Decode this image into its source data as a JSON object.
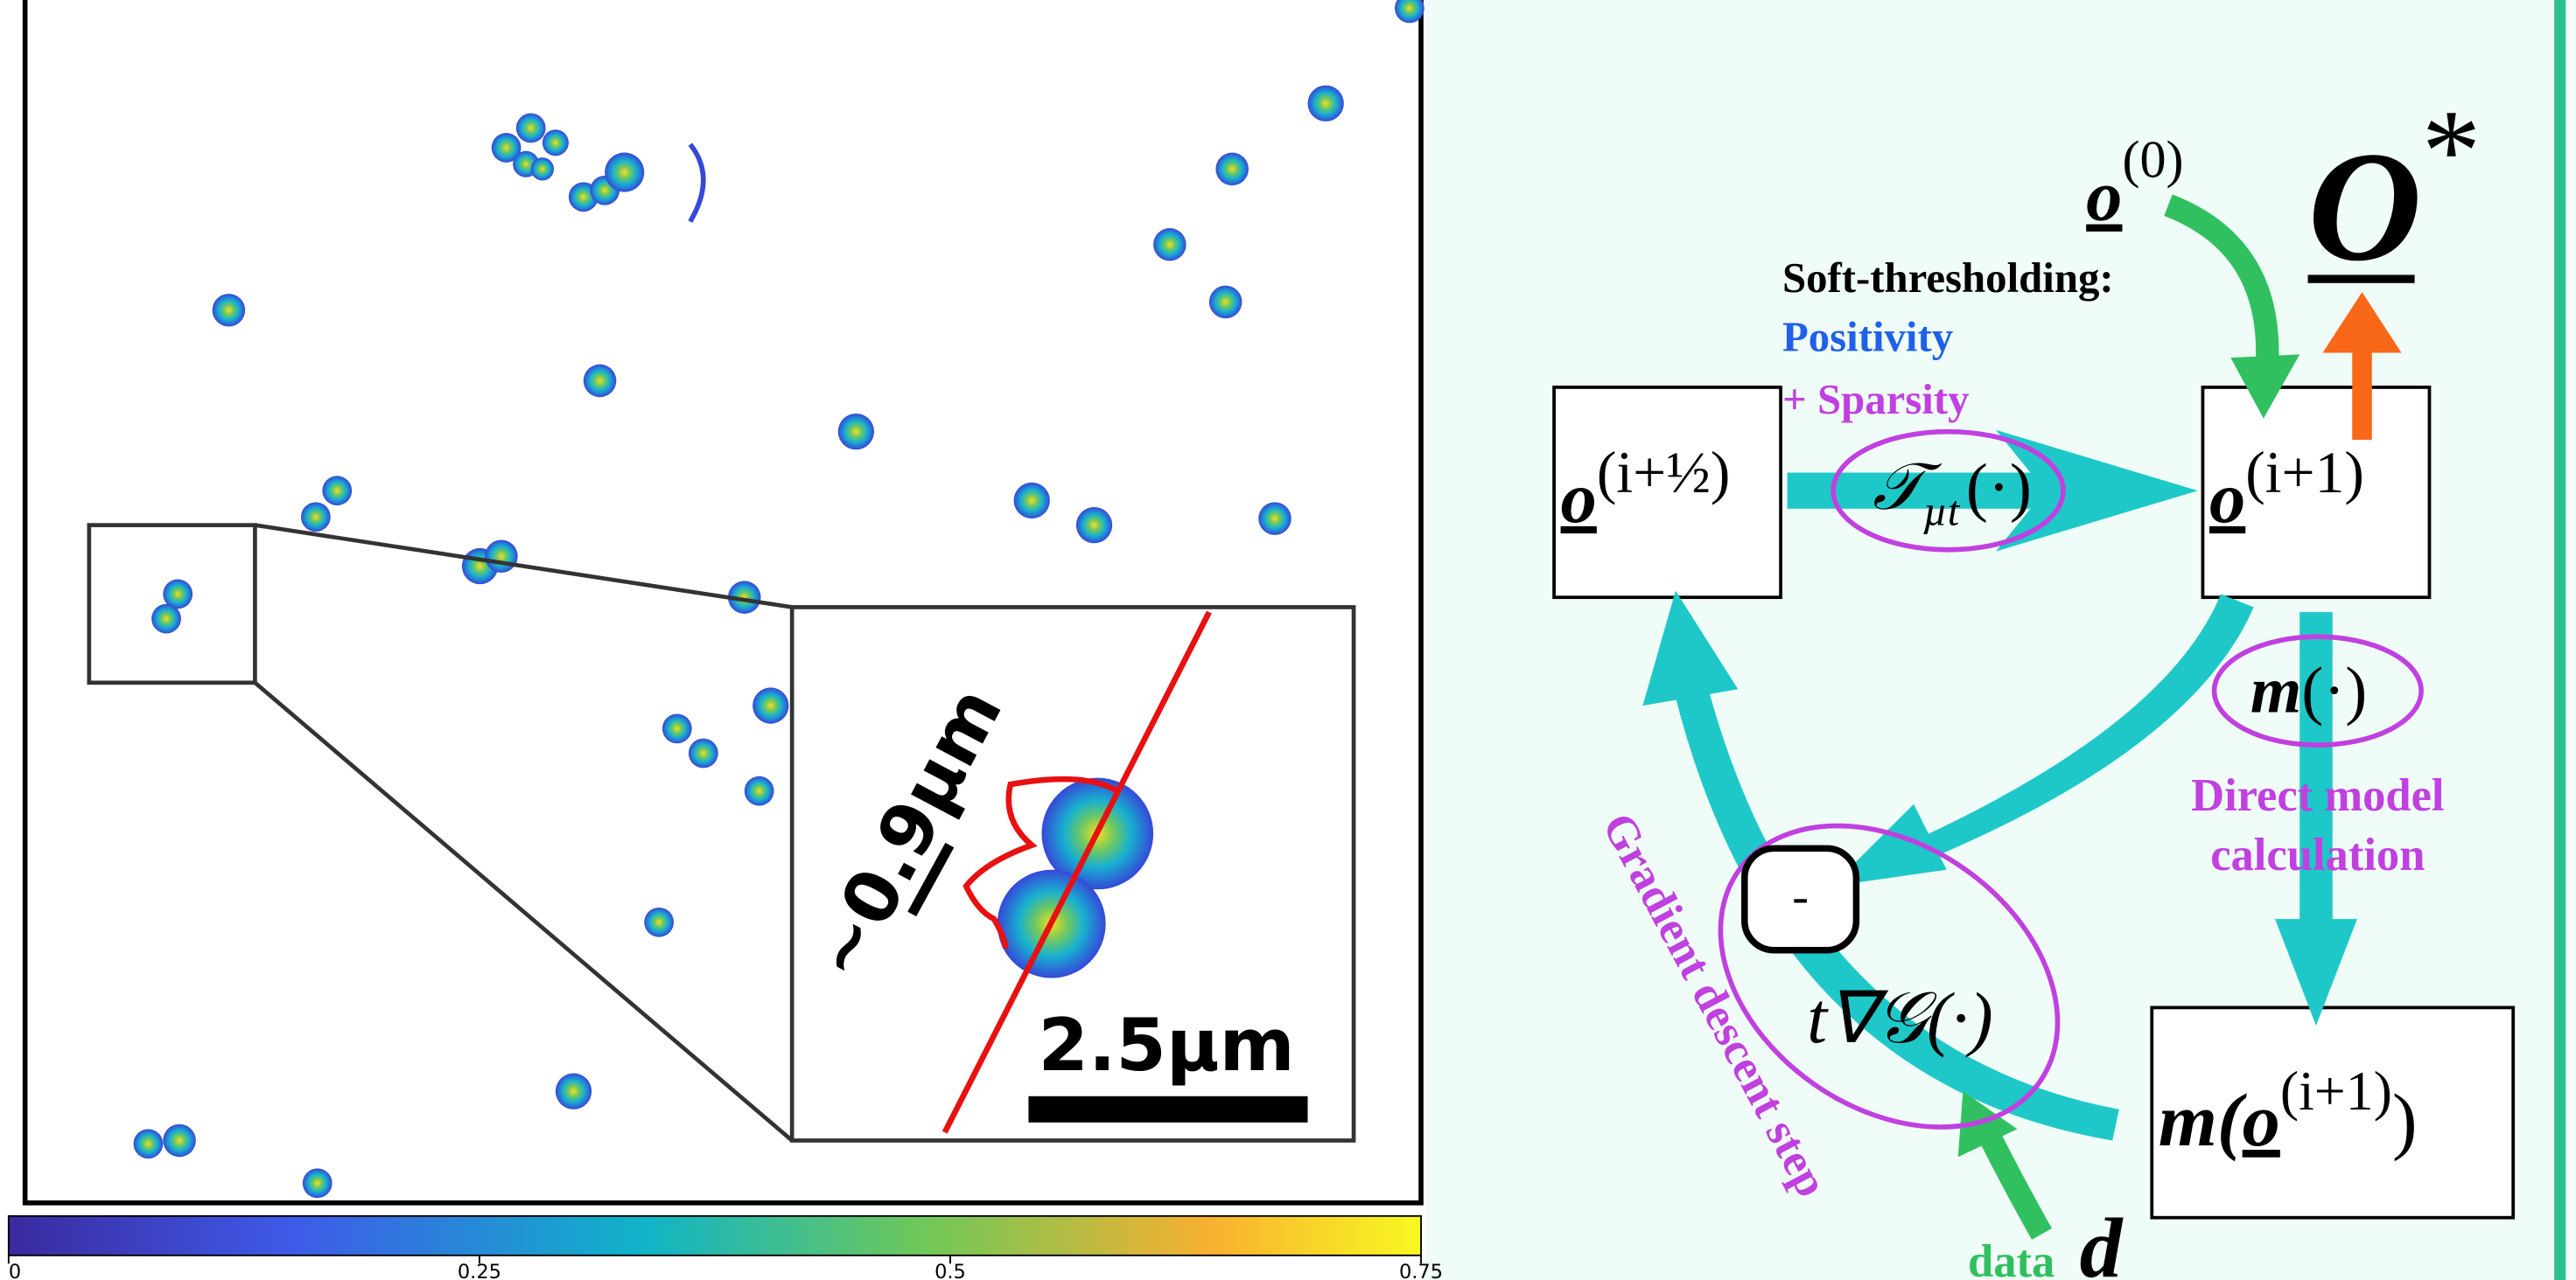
{
  "panel": {
    "width_label": "~0.9µm",
    "scale_bar_label": "2.5µm"
  },
  "colorbar": {
    "range": [
      0,
      0.75
    ],
    "ticks": [
      0,
      0.25,
      0.5,
      0.75
    ]
  },
  "diagram": {
    "initial": {
      "symbol": "o",
      "sup": "(0)"
    },
    "output": {
      "symbol": "O",
      "sup": "*"
    },
    "soft_thresholding": {
      "title": "Soft-thresholding:",
      "positivity": "Positivity",
      "sparsity": "+ Sparsity"
    },
    "half_step": {
      "symbol": "o",
      "sup": "(i+½)"
    },
    "threshold_op": {
      "symbol": "𝒯",
      "sub": "µt",
      "arg": "(·)"
    },
    "next_iterate": {
      "symbol": "o",
      "sup": "(i+1)"
    },
    "model_op": {
      "symbol": "m",
      "arg": "(·)"
    },
    "model_caption": [
      "Direct model",
      "calculation"
    ],
    "model_output": {
      "open": "m(",
      "inner": "o",
      "sup": "(i+1)",
      "close": ")"
    },
    "minus": "-",
    "gradient": "t∇𝒢(·)",
    "gradient_caption": "Gradient descent step",
    "data": {
      "caption": "data",
      "symbol": "d"
    }
  }
}
